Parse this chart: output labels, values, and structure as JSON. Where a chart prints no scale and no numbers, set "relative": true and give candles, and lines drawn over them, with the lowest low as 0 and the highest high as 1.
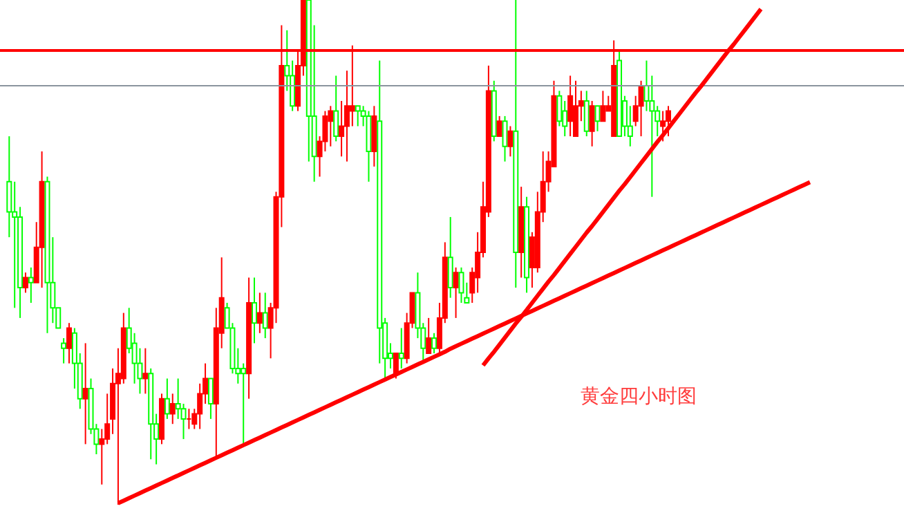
{
  "chart_data": {
    "type": "candlestick",
    "relative": true,
    "categories": [
      null,
      null,
      null,
      null,
      null,
      null,
      null,
      null,
      null,
      null,
      null,
      null,
      null,
      null,
      null,
      null,
      null,
      null,
      null,
      null,
      null,
      null,
      null,
      null,
      null,
      null,
      null,
      null,
      null,
      null,
      null,
      null,
      null,
      null,
      null,
      null,
      null,
      null,
      null,
      null,
      null,
      null,
      null,
      null,
      null,
      null,
      null,
      null,
      null,
      null,
      null,
      null,
      null,
      null,
      null,
      null,
      null,
      null,
      null,
      null,
      null,
      null,
      null,
      null,
      null,
      null,
      null,
      null,
      null,
      null,
      null,
      null,
      null,
      null,
      null,
      null,
      null,
      null,
      null,
      null,
      null,
      null,
      null,
      null,
      null,
      null,
      null,
      null,
      null,
      null,
      null,
      null,
      null,
      null,
      null,
      null,
      null,
      null,
      null,
      null,
      null,
      null,
      null,
      null,
      null,
      null,
      null,
      null,
      null,
      null,
      null,
      null,
      null,
      null,
      null,
      null,
      null,
      null,
      null,
      null,
      null,
      null,
      null,
      null,
      null,
      null,
      null,
      null,
      null,
      null,
      null,
      null,
      null,
      null,
      null,
      null,
      null,
      null,
      null,
      null,
      null,
      null,
      null,
      null,
      null,
      null,
      null,
      null
    ],
    "ohlc": [
      [
        0.64,
        0.73,
        0.53,
        0.58
      ],
      [
        0.58,
        0.64,
        0.39,
        0.57
      ],
      [
        0.57,
        0.59,
        0.37,
        0.43
      ],
      [
        0.43,
        0.46,
        0.42,
        0.45
      ],
      [
        0.45,
        0.47,
        0.4,
        0.44
      ],
      [
        0.44,
        0.56,
        0.44,
        0.51
      ],
      [
        0.51,
        0.7,
        0.43,
        0.64
      ],
      [
        0.64,
        0.65,
        0.34,
        0.44
      ],
      [
        0.44,
        0.53,
        0.36,
        0.39
      ],
      [
        0.39,
        0.39,
        0.35,
        0.35
      ],
      [
        0.32,
        0.33,
        0.28,
        0.31
      ],
      [
        0.31,
        0.36,
        0.28,
        0.35
      ],
      [
        0.34,
        0.35,
        0.23,
        0.28
      ],
      [
        0.28,
        0.3,
        0.19,
        0.21
      ],
      [
        0.21,
        0.32,
        0.12,
        0.23
      ],
      [
        0.23,
        0.25,
        0.14,
        0.15
      ],
      [
        0.15,
        0.16,
        0.1,
        0.12
      ],
      [
        0.12,
        0.15,
        0.04,
        0.13
      ],
      [
        0.13,
        0.22,
        0.12,
        0.16
      ],
      [
        0.17,
        0.27,
        0.14,
        0.24
      ],
      [
        0.24,
        0.31,
        0,
        0.26
      ],
      [
        0.25,
        0.38,
        0.24,
        0.35
      ],
      [
        0.35,
        0.39,
        0.3,
        0.31
      ],
      [
        0.32,
        0.34,
        0.24,
        0.28
      ],
      [
        0.28,
        0.31,
        0.22,
        0.25
      ],
      [
        0.25,
        0.31,
        0.22,
        0.26
      ],
      [
        0.26,
        0.27,
        0.09,
        0.16
      ],
      [
        0.16,
        0.18,
        0.08,
        0.13
      ],
      [
        0.13,
        0.22,
        0.12,
        0.21
      ],
      [
        0.21,
        0.25,
        0.17,
        0.18
      ],
      [
        0.18,
        0.22,
        0.16,
        0.2
      ],
      [
        0.2,
        0.25,
        0.17,
        0.19
      ],
      [
        0.19,
        0.2,
        0.13,
        0.17
      ],
      [
        0.17,
        0.19,
        0.15,
        0.17
      ],
      [
        0.16,
        0.19,
        0.15,
        0.18
      ],
      [
        0.18,
        0.24,
        0.15,
        0.22
      ],
      [
        0.22,
        0.28,
        0.2,
        0.25
      ],
      [
        0.25,
        0.25,
        0.17,
        0.2
      ],
      [
        0.2,
        0.39,
        0.09,
        0.35
      ],
      [
        0.34,
        0.49,
        0.31,
        0.41
      ],
      [
        0.39,
        0.4,
        0.35,
        0.35
      ],
      [
        0.35,
        0.36,
        0.26,
        0.27
      ],
      [
        0.27,
        0.31,
        0.24,
        0.26
      ],
      [
        0.27,
        0.28,
        0.12,
        0.26
      ],
      [
        0.26,
        0.45,
        0.21,
        0.4
      ],
      [
        0.4,
        0.45,
        0.32,
        0.36
      ],
      [
        0.36,
        0.42,
        0.34,
        0.38
      ],
      [
        0.38,
        0.42,
        0.33,
        0.35
      ],
      [
        0.35,
        0.4,
        0.29,
        0.39
      ],
      [
        0.39,
        0.62,
        0.36,
        0.61
      ],
      [
        0.61,
        0.95,
        0.55,
        0.87
      ],
      [
        0.87,
        0.94,
        0.82,
        0.85
      ],
      [
        0.85,
        0.88,
        0.78,
        0.79
      ],
      [
        0.79,
        0.9,
        0.78,
        0.87
      ],
      [
        0.87,
        1,
        0.85,
        1
      ],
      [
        1,
        1,
        0.68,
        0.77
      ],
      [
        0.77,
        0.95,
        0.64,
        0.69
      ],
      [
        0.69,
        0.73,
        0.65,
        0.72
      ],
      [
        0.72,
        0.78,
        0.7,
        0.77
      ],
      [
        0.76,
        0.79,
        0.71,
        0.78
      ],
      [
        0.78,
        0.85,
        0.72,
        0.73
      ],
      [
        0.73,
        0.8,
        0.69,
        0.75
      ],
      [
        0.75,
        0.86,
        0.68,
        0.79
      ],
      [
        0.78,
        0.91,
        0.75,
        0.79
      ],
      [
        0.79,
        0.79,
        0.75,
        0.78
      ],
      [
        0.78,
        0.79,
        0.75,
        0.77
      ],
      [
        0.77,
        0.78,
        0.64,
        0.7
      ],
      [
        0.7,
        0.79,
        0.67,
        0.77
      ],
      [
        0.76,
        0.88,
        0.28,
        0.35
      ],
      [
        0.36,
        0.37,
        0.25,
        0.29
      ],
      [
        0.3,
        0.32,
        0.27,
        0.29
      ],
      [
        0.26,
        0.3,
        0.25,
        0.3
      ],
      [
        0.3,
        0.35,
        0.27,
        0.29
      ],
      [
        0.29,
        0.38,
        0.28,
        0.36
      ],
      [
        0.36,
        0.42,
        0.35,
        0.42
      ],
      [
        0.42,
        0.46,
        0.33,
        0.35
      ],
      [
        0.35,
        0.36,
        0.28,
        0.31
      ],
      [
        0.3,
        0.37,
        0.3,
        0.33
      ],
      [
        0.33,
        0.34,
        0.3,
        0.31
      ],
      [
        0.31,
        0.4,
        0.3,
        0.37
      ],
      [
        0.37,
        0.52,
        0.36,
        0.49
      ],
      [
        0.49,
        0.57,
        0.41,
        0.43
      ],
      [
        0.43,
        0.47,
        0.37,
        0.46
      ],
      [
        0.46,
        0.47,
        0.4,
        0.42
      ],
      [
        0.41,
        0.44,
        0.4,
        0.4
      ],
      [
        0.42,
        0.47,
        0.4,
        0.46
      ],
      [
        0.45,
        0.54,
        0.42,
        0.5
      ],
      [
        0.5,
        0.64,
        0.49,
        0.59
      ],
      [
        0.58,
        0.87,
        0.57,
        0.82
      ],
      [
        0.82,
        0.84,
        0.72,
        0.73
      ],
      [
        0.73,
        0.77,
        0.73,
        0.76
      ],
      [
        0.76,
        0.77,
        0.68,
        0.71
      ],
      [
        0.71,
        0.75,
        0.69,
        0.74
      ],
      [
        0.74,
        1,
        0.43,
        0.5
      ],
      [
        0.5,
        0.63,
        0.45,
        0.59
      ],
      [
        0.59,
        0.61,
        0.42,
        0.45
      ],
      [
        0.47,
        0.54,
        0.43,
        0.53
      ],
      [
        0.47,
        0.62,
        0.46,
        0.58
      ],
      [
        0.58,
        0.7,
        0.56,
        0.64
      ],
      [
        0.64,
        0.7,
        0.62,
        0.68
      ],
      [
        0.67,
        0.84,
        0.67,
        0.81
      ],
      [
        0.81,
        0.82,
        0.75,
        0.76
      ],
      [
        0.78,
        0.8,
        0.73,
        0.75
      ],
      [
        0.76,
        0.85,
        0.73,
        0.81
      ],
      [
        0.73,
        0.84,
        0.73,
        0.79
      ],
      [
        0.79,
        0.82,
        0.76,
        0.8
      ],
      [
        0.8,
        0.82,
        0.73,
        0.74
      ],
      [
        0.74,
        0.8,
        0.71,
        0.79
      ],
      [
        0.79,
        0.79,
        0.74,
        0.76
      ],
      [
        0.76,
        0.82,
        0.76,
        0.79
      ],
      [
        0.78,
        0.81,
        0.78,
        0.79
      ],
      [
        0.73,
        0.92,
        0.73,
        0.87
      ],
      [
        0.88,
        0.9,
        0.73,
        0.73
      ],
      [
        0.8,
        0.81,
        0.73,
        0.75
      ],
      [
        0.75,
        0.79,
        0.71,
        0.73
      ],
      [
        0.76,
        0.81,
        0.75,
        0.79
      ],
      [
        0.79,
        0.84,
        0.73,
        0.83
      ],
      [
        0.83,
        0.88,
        0.78,
        0.8
      ],
      [
        0.8,
        0.85,
        0.61,
        0.78
      ],
      [
        0.78,
        0.79,
        0.73,
        0.76
      ],
      [
        0.75,
        0.78,
        0.72,
        0.76
      ],
      [
        0.76,
        0.79,
        0.73,
        0.78
      ],
      null,
      null,
      null,
      null,
      null,
      null,
      null,
      null,
      null,
      null,
      null,
      null,
      null,
      null,
      null,
      null,
      null,
      null,
      null,
      null,
      null,
      null,
      null,
      null,
      null,
      null
    ],
    "colors": [
      "#00ff00",
      "#00ff00",
      "#00ff00",
      "#ff0000",
      "#00ff00",
      "#ff0000",
      "#ff0000",
      "#00ff00",
      "#00ff00",
      "#00ff00",
      "#00ff00",
      "#ff0000",
      "#00ff00",
      "#00ff00",
      "#ff0000",
      "#00ff00",
      "#00ff00",
      "#ff0000",
      "#ff0000",
      "#ff0000",
      "#ff0000",
      "#ff0000",
      "#00ff00",
      "#00ff00",
      "#00ff00",
      "#ff0000",
      "#00ff00",
      "#00ff00",
      "#ff0000",
      "#00ff00",
      "#ff0000",
      "#00ff00",
      "#00ff00",
      "#ff0000",
      "#ff0000",
      "#ff0000",
      "#ff0000",
      "#00ff00",
      "#ff0000",
      "#ff0000",
      "#00ff00",
      "#00ff00",
      "#00ff00",
      "#00ff00",
      "#ff0000",
      "#00ff00",
      "#ff0000",
      "#00ff00",
      "#ff0000",
      "#ff0000",
      "#ff0000",
      "#00ff00",
      "#00ff00",
      "#ff0000",
      "#ff0000",
      "#00ff00",
      "#00ff00",
      "#ff0000",
      "#ff0000",
      "#ff0000",
      "#00ff00",
      "#ff0000",
      "#ff0000",
      "#ff0000",
      "#00ff00",
      "#00ff00",
      "#00ff00",
      "#ff0000",
      "#00ff00",
      "#00ff00",
      "#00ff00",
      "#ff0000",
      "#00ff00",
      "#ff0000",
      "#ff0000",
      "#00ff00",
      "#00ff00",
      "#ff0000",
      "#00ff00",
      "#ff0000",
      "#ff0000",
      "#00ff00",
      "#ff0000",
      "#00ff00",
      "#00ff00",
      "#ff0000",
      "#ff0000",
      "#ff0000",
      "#ff0000",
      "#00ff00",
      "#ff0000",
      "#00ff00",
      "#ff0000",
      "#00ff00",
      "#ff0000",
      "#00ff00",
      "#ff0000",
      "#ff0000",
      "#ff0000",
      "#ff0000",
      "#ff0000",
      "#00ff00",
      "#00ff00",
      "#ff0000",
      "#ff0000",
      "#ff0000",
      "#00ff00",
      "#ff0000",
      "#00ff00",
      "#ff0000",
      "#ff0000",
      "#ff0000",
      "#00ff00",
      "#00ff00",
      "#00ff00",
      "#ff0000",
      "#ff0000",
      "#00ff00",
      "#00ff00",
      "#00ff00",
      "#ff0000",
      "#ff0000",
      null,
      null,
      null,
      null,
      null,
      null,
      null,
      null,
      null,
      null,
      null,
      null,
      null,
      null,
      null,
      null,
      null,
      null,
      null,
      null,
      null,
      null,
      null,
      null,
      null,
      null
    ],
    "series": [
      {
        "type": "line",
        "color": "#ff0000",
        "values": [
          null,
          null,
          null,
          null,
          null,
          null,
          null,
          null,
          null,
          null,
          null,
          null,
          null,
          null,
          null,
          null,
          null,
          null,
          null,
          null,
          0.003,
          0.008,
          0.013,
          0.018,
          0.023,
          0.028,
          0.033,
          0.038,
          0.043,
          0.048,
          0.053,
          0.058,
          0.063,
          0.068,
          0.073,
          0.078,
          0.083,
          0.088,
          0.093,
          0.098,
          0.103,
          0.108,
          0.113,
          0.118,
          0.123,
          0.128,
          0.133,
          0.138,
          0.143,
          0.148,
          0.153,
          0.158,
          0.163,
          0.168,
          0.173,
          0.178,
          0.183,
          0.188,
          0.193,
          0.198,
          0.203,
          0.208,
          0.213,
          0.218,
          0.223,
          0.228,
          0.233,
          0.238,
          0.243,
          0.248,
          0.253,
          0.258,
          0.263,
          0.268,
          0.273,
          0.278,
          0.283,
          0.288,
          0.293,
          0.298,
          0.303,
          0.309,
          0.314,
          0.319,
          0.324,
          0.329,
          0.334,
          0.339,
          0.344,
          0.349,
          0.354,
          0.359,
          0.364,
          0.369,
          0.374,
          0.379,
          0.384,
          0.389,
          0.394,
          0.399,
          0.404,
          0.409,
          0.414,
          0.419,
          0.424,
          0.429,
          0.434,
          0.439,
          0.444,
          0.449,
          0.454,
          0.459,
          0.464,
          0.469,
          0.474,
          0.479,
          0.484,
          0.489,
          0.494,
          0.499,
          0.504,
          0.509,
          0.514,
          0.519,
          0.524,
          0.529,
          0.534,
          0.539,
          0.544,
          0.549,
          0.554,
          0.559,
          0.564,
          0.569,
          0.574,
          0.579,
          0.584,
          0.589,
          0.594,
          0.599,
          0.604,
          0.609,
          0.614,
          0.619,
          0.624,
          0.629,
          0.634,
          0.639
        ]
      },
      {
        "type": "line",
        "color": "#ff0000",
        "values": [
          null,
          null,
          null,
          null,
          null,
          null,
          null,
          null,
          null,
          null,
          null,
          null,
          null,
          null,
          null,
          null,
          null,
          null,
          null,
          null,
          null,
          null,
          null,
          null,
          null,
          null,
          null,
          null,
          null,
          null,
          null,
          null,
          null,
          null,
          null,
          null,
          null,
          null,
          null,
          null,
          null,
          null,
          null,
          null,
          null,
          null,
          null,
          null,
          null,
          null,
          null,
          null,
          null,
          null,
          null,
          null,
          null,
          null,
          null,
          null,
          null,
          null,
          null,
          null,
          null,
          null,
          null,
          null,
          null,
          null,
          null,
          null,
          null,
          null,
          null,
          null,
          null,
          null,
          null,
          null,
          null,
          null,
          null,
          null,
          null,
          null,
          null,
          0.276,
          0.29,
          0.303,
          0.317,
          0.331,
          0.345,
          0.359,
          0.372,
          0.386,
          0.4,
          0.414,
          0.428,
          0.442,
          0.455,
          0.469,
          0.483,
          0.497,
          0.511,
          0.525,
          0.539,
          0.552,
          0.566,
          0.58,
          0.594,
          0.608,
          0.622,
          0.635,
          0.649,
          0.663,
          0.677,
          0.691,
          0.705,
          0.719,
          0.732,
          0.746,
          0.76,
          0.774,
          0.788,
          0.802,
          0.816,
          0.829,
          0.843,
          0.857,
          0.871,
          0.885,
          0.899,
          0.912,
          0.926,
          0.94,
          0.954,
          0.968,
          0.982,
          null,
          null,
          null,
          null,
          null,
          null,
          null,
          null,
          null
        ]
      }
    ],
    "ref_lines": [
      {
        "axis": "y",
        "value": 0.9,
        "color": "#ff0000"
      },
      {
        "axis": "y",
        "value": 0.83,
        "color": "#8a949e"
      }
    ],
    "annotations": [
      "黄金四小时图"
    ]
  }
}
